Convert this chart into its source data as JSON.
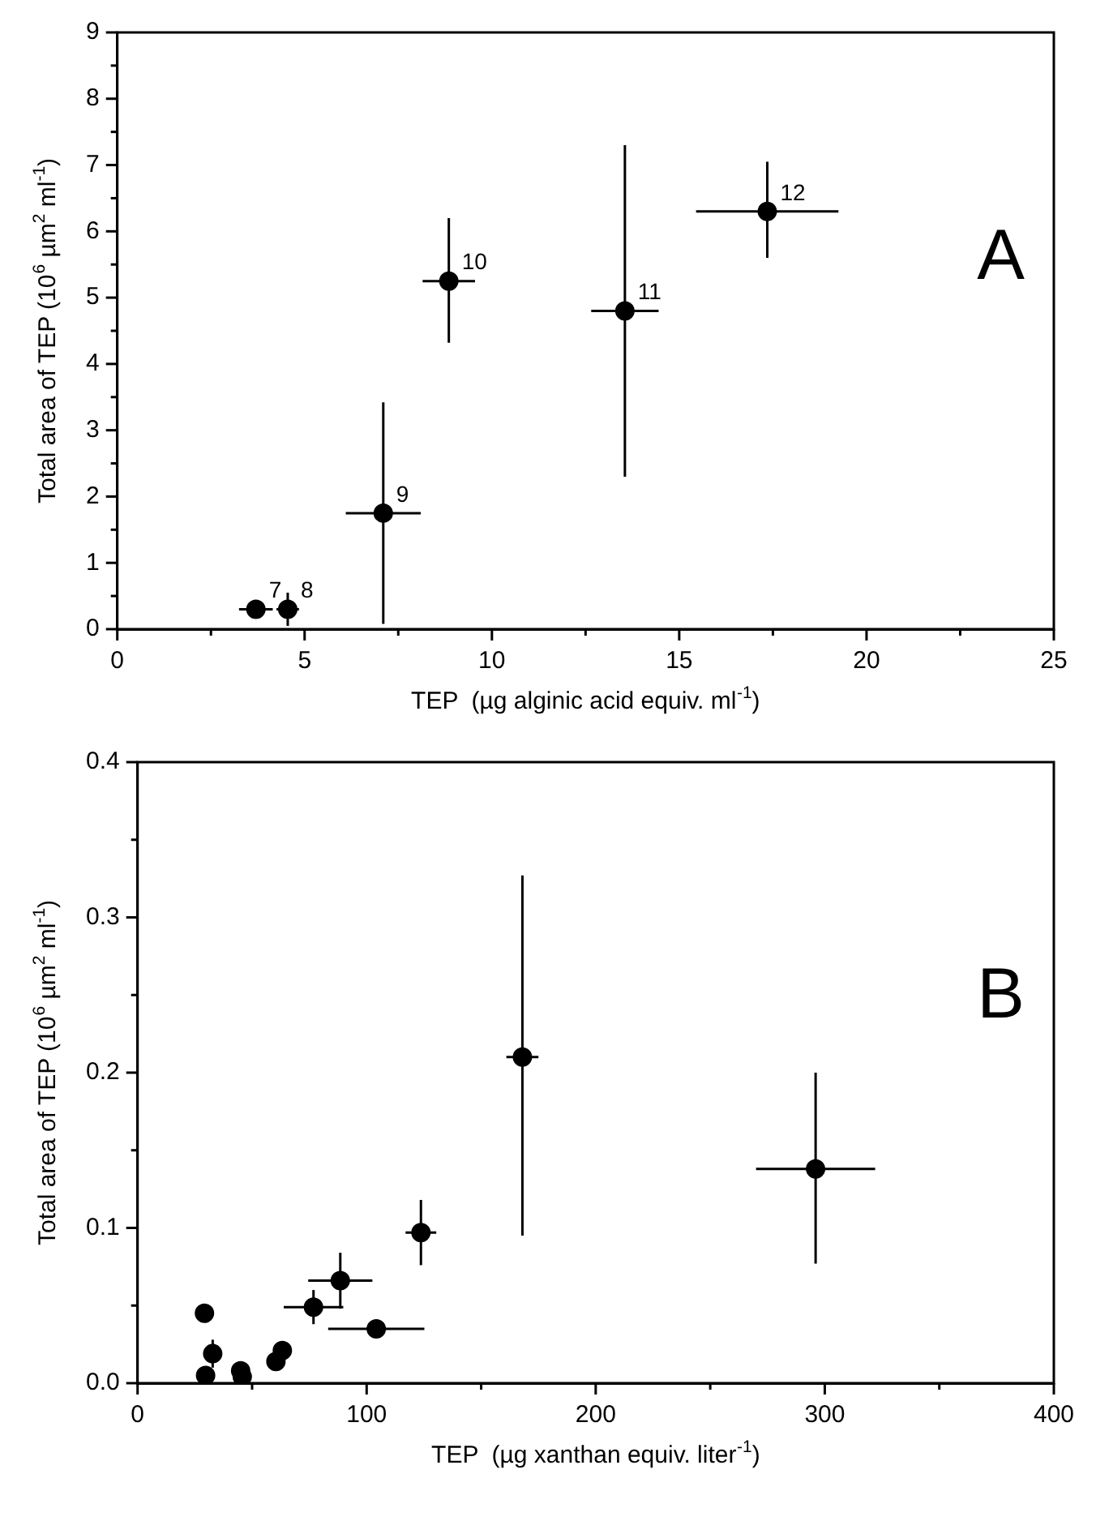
{
  "chart_data": [
    {
      "type": "scatter",
      "xlabel": "TEP  (µg alginic acid equiv. ml$^{-1}$)",
      "ylabel": "Total area of TEP (10$^{6}$ µm$^{2}$ ml$^{-1}$)",
      "x": [
        3.7,
        4.55,
        7.1,
        8.85,
        13.55,
        17.35
      ],
      "series": [
        {
          "color": "#000000",
          "values": [
            0.3,
            0.3,
            1.75,
            5.25,
            4.8,
            6.3
          ],
          "errors": [
            0.12,
            0.25,
            [
              0.08,
              3.42
            ],
            [
              4.32,
              6.2
            ],
            [
              2.3,
              7.3
            ],
            [
              5.6,
              7.05
            ]
          ],
          "xerrors": [
            0.45,
            0.3,
            1.0,
            0.7,
            0.9,
            1.9
          ]
        }
      ],
      "xlim": [
        0,
        25
      ],
      "xticks": [
        0,
        {
          "value": 2.5,
          "label": null
        },
        5,
        {
          "value": 7.5,
          "label": null
        },
        10,
        {
          "value": 12.5,
          "label": null
        },
        15,
        {
          "value": 17.5,
          "label": null
        },
        20,
        {
          "value": 22.5,
          "label": null
        },
        25
      ],
      "ylim": [
        0,
        9
      ],
      "yticks": [
        0,
        {
          "value": 0.5,
          "label": null
        },
        1,
        {
          "value": 1.5,
          "label": null
        },
        2,
        {
          "value": 2.5,
          "label": null
        },
        3,
        {
          "value": 3.5,
          "label": null
        },
        4,
        {
          "value": 4.5,
          "label": null
        },
        5,
        {
          "value": 5.5,
          "label": null
        },
        6,
        {
          "value": 6.5,
          "label": null
        },
        7,
        {
          "value": 7.5,
          "label": null
        },
        8,
        {
          "value": 8.5,
          "label": null
        },
        9
      ],
      "marker": "circle",
      "grid": false,
      "legend": false,
      "annotations": [
        {
          "text": "7",
          "x": 3.7,
          "y": 0.3
        },
        {
          "text": "8",
          "x": 4.55,
          "y": 0.3
        },
        {
          "text": "9",
          "x": 7.1,
          "y": 1.75
        },
        {
          "text": "10",
          "x": 8.85,
          "y": 5.25
        },
        {
          "text": "11",
          "x": 13.55,
          "y": 4.8
        },
        {
          "text": "12",
          "x": 17.35,
          "y": 6.3
        },
        "A"
      ]
    },
    {
      "type": "scatter",
      "xlabel": "TEP  (µg xanthan equiv. liter$^{-1}$)",
      "ylabel": "Total area of TEP (10$^{6}$ µm$^{2}$ ml$^{-1}$)",
      "x": [
        29.2,
        32.8,
        29.7,
        45,
        45.7,
        60.4,
        63.2,
        76.8,
        88.5,
        104.2,
        123.7,
        168,
        296
      ],
      "series": [
        {
          "color": "#000000",
          "values": [
            0.045,
            0.019,
            0.005,
            0.008,
            0.004,
            0.014,
            0.021,
            0.049,
            0.066,
            0.035,
            0.097,
            0.21,
            0.138
          ],
          "errors": [
            null,
            0.009,
            null,
            null,
            null,
            0.006,
            null,
            0.011,
            0.018,
            null,
            0.021,
            [
              0.095,
              0.327
            ],
            [
              0.077,
              0.2
            ]
          ],
          "xerrors": [
            null,
            null,
            null,
            null,
            null,
            null,
            null,
            13,
            14,
            21,
            6.7,
            7,
            26
          ]
        }
      ],
      "xlim": [
        0,
        400
      ],
      "xticks": [
        0,
        {
          "value": 50,
          "label": null
        },
        100,
        {
          "value": 150,
          "label": null
        },
        200,
        {
          "value": 250,
          "label": null
        },
        300,
        {
          "value": 350,
          "label": null
        },
        400
      ],
      "ylim": [
        0,
        0.4
      ],
      "yticks": [
        {
          "value": 0,
          "label": "0.0"
        },
        {
          "value": 0.05,
          "label": null
        },
        0.1,
        {
          "value": 0.15,
          "label": null
        },
        0.2,
        {
          "value": 0.25,
          "label": null
        },
        0.3,
        {
          "value": 0.35,
          "label": null
        },
        0.4
      ],
      "marker": "circle",
      "grid": false,
      "legend": false,
      "annotations": [
        "B"
      ]
    }
  ]
}
